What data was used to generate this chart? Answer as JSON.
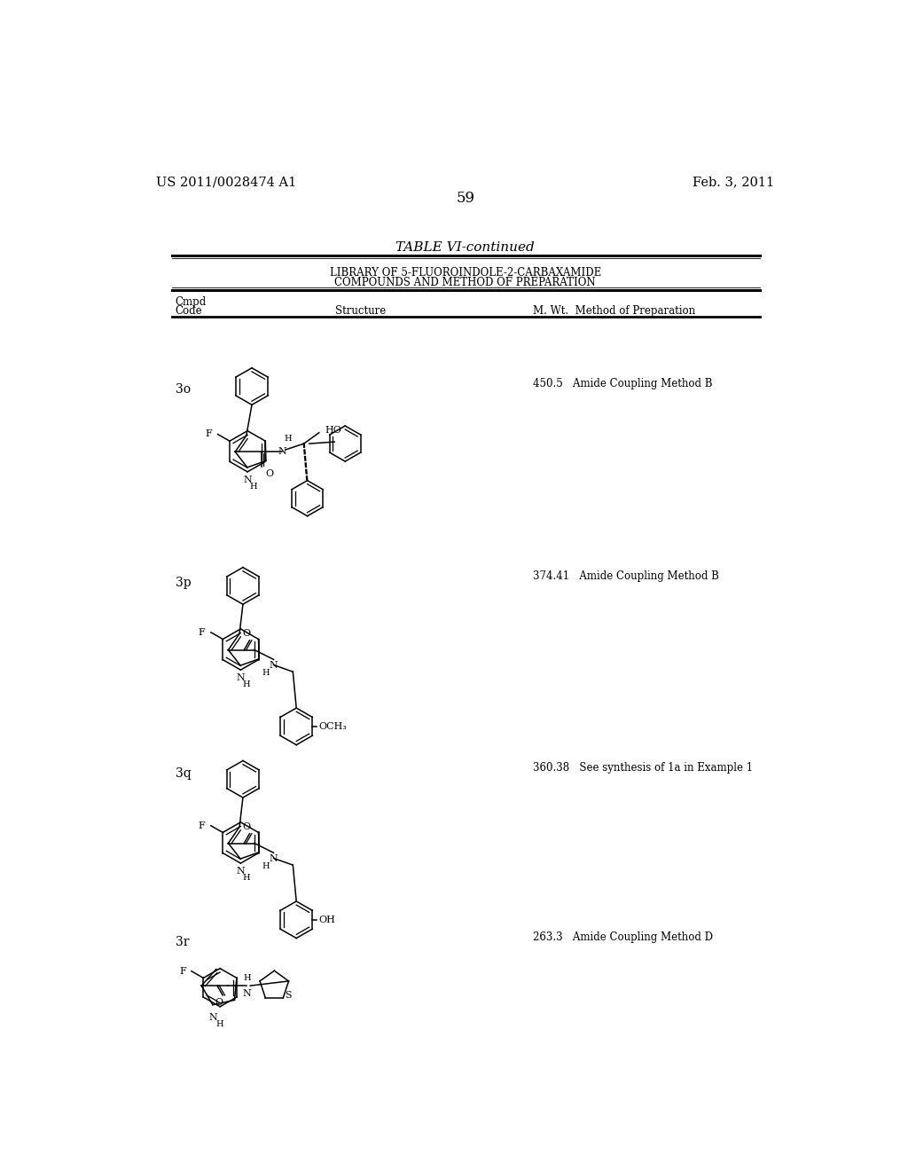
{
  "page_number": "59",
  "patent_number": "US 2011/0028474 A1",
  "patent_date": "Feb. 3, 2011",
  "table_title": "TABLE VI-continued",
  "table_subtitle1": "LIBRARY OF 5-FLUOROINDOLE-2-CARBAXAMIDE",
  "table_subtitle2": "COMPOUNDS AND METHOD OF PREPARATION",
  "bg_color": "#ffffff",
  "text_color": "#000000",
  "rows": [
    {
      "code": "3o",
      "mw": "450.5",
      "method": "Amide Coupling Method B"
    },
    {
      "code": "3p",
      "mw": "374.41",
      "method": "Amide Coupling Method B"
    },
    {
      "code": "3q",
      "mw": "360.38",
      "method": "See synthesis of 1a in Example 1"
    },
    {
      "code": "3r",
      "mw": "263.3",
      "method": "Amide Coupling Method D"
    }
  ]
}
